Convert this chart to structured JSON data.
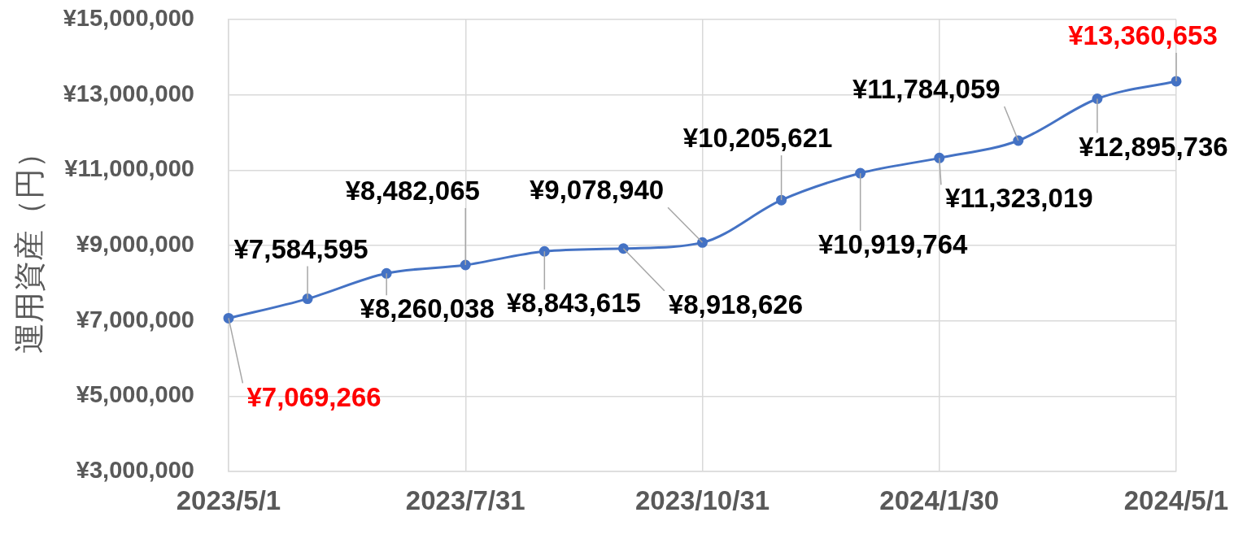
{
  "chart_data": {
    "type": "line",
    "ylabel": "運用資産（円）",
    "categories": [
      "2023/5/1",
      null,
      null,
      "2023/7/31",
      null,
      null,
      "2023/10/31",
      null,
      null,
      "2024/1/30",
      null,
      null,
      "2024/5/1"
    ],
    "series": [
      {
        "color": "#4472c4",
        "values": [
          7069266,
          7584595,
          8260038,
          8482065,
          8843615,
          8918626,
          9078940,
          10205621,
          10919764,
          11323019,
          11784059,
          12895736,
          13360653
        ],
        "value_labels": [
          "¥7,069,266",
          "¥7,584,595",
          "¥8,260,038",
          "¥8,482,065",
          "¥8,843,615",
          "¥8,918,626",
          "¥9,078,940",
          "¥10,205,621",
          "¥10,919,764",
          "¥11,323,019",
          "¥11,784,059",
          "¥12,895,736",
          "¥13,360,653"
        ]
      }
    ],
    "ylim": [
      3000000,
      15000000
    ],
    "yticks": [
      {
        "value": 3000000,
        "label": "¥3,000,000"
      },
      {
        "value": 5000000,
        "label": "¥5,000,000"
      },
      {
        "value": 7000000,
        "label": "¥7,000,000"
      },
      {
        "value": 9000000,
        "label": "¥9,000,000"
      },
      {
        "value": 11000000,
        "label": "¥11,000,000"
      },
      {
        "value": 13000000,
        "label": "¥13,000,000"
      },
      {
        "value": 15000000,
        "label": "¥15,000,000"
      }
    ],
    "grid": true,
    "marker": "circle",
    "line_style": "solid"
  }
}
